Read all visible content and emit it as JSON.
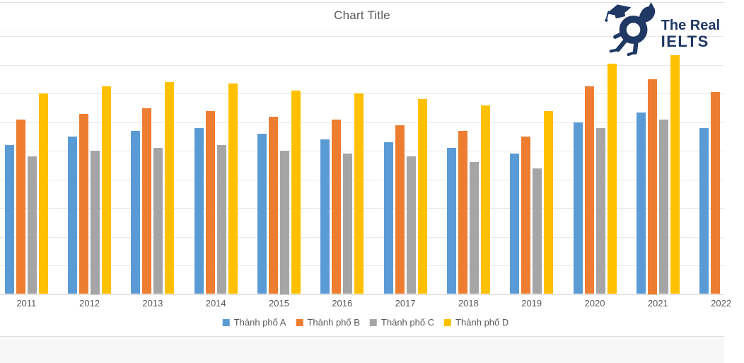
{
  "logo": {
    "line1": "The Real",
    "line2": "IELTS"
  },
  "colors": {
    "series_a": "#5B9BD5",
    "series_b": "#ED7D31",
    "series_c": "#A5A5A5",
    "series_d": "#FFC000",
    "text": "#595959",
    "logo_navy": "#1F3864",
    "gridline": "#e9e9e9"
  },
  "chart_data": {
    "type": "bar",
    "title": "Chart Title",
    "categories": [
      "2011",
      "2012",
      "2013",
      "2014",
      "2015",
      "2016",
      "2017",
      "2018",
      "2019",
      "2020",
      "2021",
      "2022"
    ],
    "series": [
      {
        "name": "Thành phố A",
        "color": "#5B9BD5",
        "values": [
          52,
          55,
          57,
          58,
          56,
          54,
          53,
          51,
          49,
          60,
          63.5,
          58
        ]
      },
      {
        "name": "Thành phố B",
        "color": "#ED7D31",
        "values": [
          61,
          63,
          65,
          64,
          62,
          61,
          59,
          57,
          55,
          72.5,
          75,
          70.5
        ]
      },
      {
        "name": "Thành phố C",
        "color": "#A5A5A5",
        "values": [
          48,
          50,
          51,
          52,
          50,
          49,
          48,
          46,
          44,
          58,
          61,
          null
        ]
      },
      {
        "name": "Thành phố D",
        "color": "#FFC000",
        "values": [
          70,
          72.5,
          74,
          73.5,
          71,
          70,
          68,
          66,
          64,
          80.5,
          83.5,
          null
        ]
      }
    ],
    "xlabel": "",
    "ylabel": "",
    "ylim": [
      0,
      90
    ],
    "gridline_step": 10,
    "grid": true,
    "legend_position": "bottom",
    "note": "left/right edges of chart cropped; no y-axis tick labels visible; 2022 group partially cut off at right edge"
  }
}
